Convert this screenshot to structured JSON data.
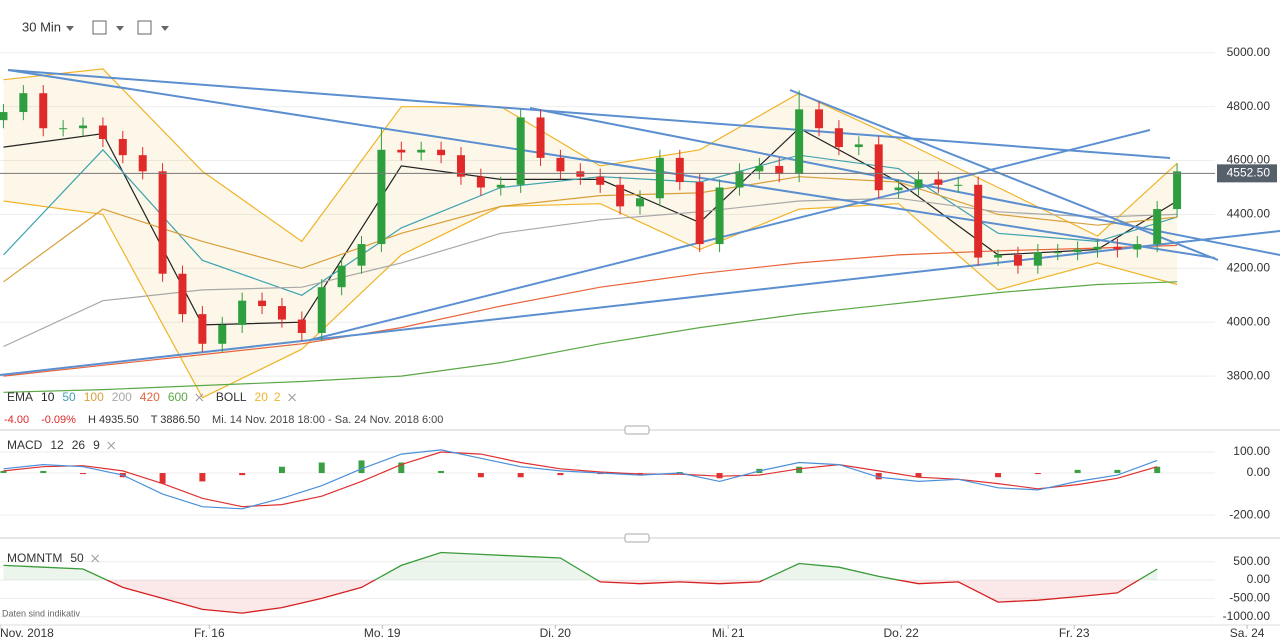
{
  "toolbar": {
    "interval": "30 Min"
  },
  "footer": "Daten sind indikativ",
  "chart_data": [
    {
      "type": "candlestick",
      "up_color": "#2f9e3f",
      "down_color": "#e02a2a",
      "x": [
        -0.19,
        -0.075,
        0.04,
        0.155,
        0.27,
        0.385,
        0.5,
        0.615,
        0.73,
        0.845,
        0.96,
        1.075,
        1.19,
        1.305,
        1.42,
        1.535,
        1.65,
        1.765,
        1.88,
        1.995,
        2.11,
        2.225,
        2.34,
        2.455,
        2.57,
        2.685,
        2.8,
        2.915,
        3.03,
        3.145,
        3.26,
        3.375,
        3.49,
        3.605,
        3.72,
        3.835,
        3.95,
        4.065,
        4.18,
        4.295,
        4.41,
        4.525,
        4.64,
        4.755,
        4.87,
        4.985,
        5.1,
        5.215,
        5.33,
        5.445,
        5.56,
        5.675,
        5.79,
        5.905,
        6.02,
        6.135,
        6.25,
        6.365,
        6.48,
        6.595
      ],
      "open": [
        4750,
        4780,
        4850,
        4720,
        4720,
        4730,
        4680,
        4620,
        4560,
        4180,
        4030,
        3920,
        3990,
        4080,
        4060,
        4010,
        3960,
        4130,
        4210,
        4290,
        4640,
        4630,
        4640,
        4620,
        4540,
        4500,
        4510,
        4760,
        4610,
        4560,
        4540,
        4510,
        4430,
        4460,
        4610,
        4520,
        4290,
        4500,
        4560,
        4580,
        4550,
        4790,
        4720,
        4650,
        4660,
        4490,
        4500,
        4530,
        4510,
        4510,
        4240,
        4250,
        4210,
        4260,
        4260,
        4270,
        4280,
        4270,
        4290,
        4420
      ],
      "high": [
        4810,
        4880,
        4880,
        4750,
        4760,
        4760,
        4710,
        4650,
        4590,
        4210,
        4060,
        4020,
        4110,
        4110,
        4090,
        4040,
        4160,
        4240,
        4320,
        4720,
        4670,
        4670,
        4670,
        4650,
        4570,
        4540,
        4790,
        4790,
        4640,
        4590,
        4570,
        4540,
        4490,
        4640,
        4640,
        4550,
        4530,
        4590,
        4610,
        4610,
        4860,
        4820,
        4750,
        4690,
        4690,
        4530,
        4560,
        4560,
        4540,
        4540,
        4270,
        4280,
        4290,
        4290,
        4300,
        4310,
        4310,
        4320,
        4450,
        4590
      ],
      "low": [
        4720,
        4750,
        4690,
        4690,
        4690,
        4650,
        4590,
        4530,
        4150,
        4000,
        3890,
        3890,
        3960,
        4030,
        3980,
        3930,
        3930,
        4100,
        4180,
        4260,
        4600,
        4600,
        4590,
        4510,
        4470,
        4470,
        4480,
        4580,
        4530,
        4510,
        4480,
        4400,
        4400,
        4430,
        4490,
        4260,
        4260,
        4470,
        4530,
        4520,
        4520,
        4690,
        4620,
        4620,
        4460,
        4460,
        4470,
        4480,
        4480,
        4210,
        4210,
        4180,
        4180,
        4230,
        4230,
        4240,
        4240,
        4240,
        4260,
        4390
      ],
      "close": [
        4780,
        4850,
        4720,
        4720,
        4730,
        4680,
        4620,
        4560,
        4180,
        4030,
        3920,
        3990,
        4080,
        4060,
        4010,
        3960,
        4130,
        4210,
        4290,
        4640,
        4630,
        4640,
        4620,
        4540,
        4500,
        4510,
        4760,
        4610,
        4560,
        4540,
        4510,
        4430,
        4460,
        4610,
        4520,
        4290,
        4500,
        4560,
        4580,
        4550,
        4790,
        4720,
        4650,
        4660,
        4490,
        4500,
        4530,
        4510,
        4510,
        4240,
        4250,
        4210,
        4260,
        4260,
        4270,
        4280,
        4270,
        4290,
        4420,
        4560
      ],
      "xlim": [
        -0.21,
        7.19
      ],
      "xticks": [
        {
          "value": -0.21,
          "label": "Nov. 2018"
        },
        {
          "value": 1,
          "label": "Fr. 16"
        },
        {
          "value": 2,
          "label": "Mo. 19"
        },
        {
          "value": 3,
          "label": "Di. 20"
        },
        {
          "value": 4,
          "label": "Mi. 21"
        },
        {
          "value": 5,
          "label": "Do. 22"
        },
        {
          "value": 6,
          "label": "Fr. 23"
        },
        {
          "value": 7,
          "label": "Sa. 24"
        }
      ],
      "ylim": [
        3600,
        5040
      ],
      "yticks": [
        {
          "value": 3800,
          "label": "3800.00"
        },
        {
          "value": 4000,
          "label": "4000.00"
        },
        {
          "value": 4200,
          "label": "4200.00"
        },
        {
          "value": 4400,
          "label": "4400.00"
        },
        {
          "value": 4600,
          "label": "4600.00"
        },
        {
          "value": 4800,
          "label": "4800.00"
        },
        {
          "value": 5000,
          "label": "5000.00"
        }
      ],
      "last_value": {
        "value": 4552.5,
        "label": "4552.50"
      },
      "overlay_label": "EMA",
      "overlay_x": [
        -0.19,
        0.385,
        0.96,
        1.535,
        2.11,
        2.685,
        3.26,
        3.835,
        4.41,
        4.985,
        5.56,
        6.135,
        6.595
      ],
      "overlays": [
        {
          "name": "10",
          "color": "#222222",
          "values": [
            4650,
            4700,
            3990,
            4000,
            4580,
            4530,
            4530,
            4370,
            4720,
            4520,
            4250,
            4270,
            4450
          ]
        },
        {
          "name": "50",
          "color": "#3fa3b0",
          "values": [
            4250,
            4640,
            4230,
            4100,
            4350,
            4500,
            4540,
            4520,
            4620,
            4570,
            4330,
            4300,
            4390
          ]
        },
        {
          "name": "100",
          "color": "#d8a03a",
          "values": [
            4150,
            4420,
            4300,
            4200,
            4330,
            4430,
            4470,
            4480,
            4540,
            4520,
            4400,
            4360,
            4390
          ]
        },
        {
          "name": "200",
          "color": "#a8a8a8",
          "values": [
            3910,
            4080,
            4120,
            4130,
            4220,
            4330,
            4380,
            4410,
            4450,
            4460,
            4410,
            4390,
            4400
          ]
        },
        {
          "name": "420",
          "color": "#e8643a",
          "values": [
            3800,
            3840,
            3880,
            3920,
            3980,
            4060,
            4130,
            4180,
            4220,
            4250,
            4265,
            4275,
            4285
          ]
        },
        {
          "name": "600",
          "color": "#5aa846",
          "values": [
            3740,
            3750,
            3765,
            3780,
            3800,
            3850,
            3920,
            3980,
            4030,
            4070,
            4110,
            4140,
            4150
          ]
        }
      ],
      "bollinger": {
        "label": "BOLL",
        "period": "20",
        "width": "2",
        "color": "#f0b429",
        "upper": [
          4900,
          4940,
          4560,
          4300,
          4800,
          4800,
          4580,
          4640,
          4850,
          4680,
          4500,
          4320,
          4590
        ],
        "lower": [
          4450,
          4400,
          3720,
          3900,
          4250,
          4430,
          4440,
          4270,
          4420,
          4440,
          4120,
          4220,
          4140
        ]
      },
      "info": {
        "change": "-4.00",
        "change_pct": "-0.09%",
        "high": "H 4935.50",
        "low": "T 3886.50",
        "range": "Mi. 14 Nov. 2018 18:00 - Sa. 24 Nov. 2018 6:00"
      }
    },
    {
      "type": "combo",
      "label": "MACD",
      "params": [
        "12",
        "26",
        "9"
      ],
      "x": [
        -0.19,
        0.04,
        0.27,
        0.5,
        0.73,
        0.96,
        1.19,
        1.42,
        1.65,
        1.88,
        2.11,
        2.34,
        2.57,
        2.8,
        3.03,
        3.26,
        3.49,
        3.72,
        3.95,
        4.18,
        4.41,
        4.64,
        4.87,
        5.1,
        5.33,
        5.56,
        5.79,
        6.02,
        6.25,
        6.48
      ],
      "histogram": {
        "up_color": "#3aa043",
        "down_color": "#e03030",
        "values": [
          10,
          10,
          -5,
          -20,
          -50,
          -40,
          -10,
          30,
          50,
          60,
          50,
          10,
          -20,
          -20,
          -10,
          -5,
          -5,
          5,
          -25,
          20,
          30,
          0,
          -30,
          -20,
          0,
          -20,
          -5,
          15,
          15,
          30
        ]
      },
      "macd": {
        "color": "#4a90d9",
        "values": [
          20,
          40,
          30,
          -10,
          -100,
          -160,
          -170,
          -120,
          -60,
          20,
          90,
          110,
          70,
          30,
          10,
          0,
          -10,
          0,
          -40,
          10,
          50,
          40,
          -20,
          -40,
          -30,
          -70,
          -80,
          -40,
          -10,
          60
        ]
      },
      "signal": {
        "color": "#e03030",
        "values": [
          10,
          30,
          35,
          10,
          -50,
          -120,
          -160,
          -150,
          -110,
          -40,
          40,
          100,
          90,
          50,
          20,
          5,
          -5,
          -5,
          -15,
          -10,
          20,
          40,
          10,
          -20,
          -30,
          -50,
          -75,
          -55,
          -25,
          30
        ]
      },
      "ylim": [
        -285,
        195
      ],
      "yticks": [
        {
          "value": -200,
          "label": "-200.00"
        },
        {
          "value": 0,
          "label": "0.00"
        },
        {
          "value": 100,
          "label": "100.00"
        }
      ]
    },
    {
      "type": "area",
      "label": "MOMNTM",
      "params": [
        "50"
      ],
      "x": [
        -0.19,
        0.04,
        0.27,
        0.5,
        0.73,
        0.96,
        1.19,
        1.42,
        1.65,
        1.88,
        2.11,
        2.34,
        2.57,
        2.8,
        3.03,
        3.26,
        3.49,
        3.72,
        3.95,
        4.18,
        4.41,
        4.64,
        4.87,
        5.1,
        5.33,
        5.56,
        5.79,
        6.02,
        6.25,
        6.48
      ],
      "values": [
        400,
        350,
        300,
        -200,
        -500,
        -800,
        -900,
        -750,
        -500,
        -200,
        400,
        750,
        700,
        650,
        600,
        -50,
        -100,
        -50,
        -100,
        -50,
        450,
        350,
        100,
        -100,
        -50,
        -600,
        -550,
        -450,
        -350,
        300
      ],
      "color_above": "#3a9a3a",
      "color_below": "#d42020",
      "ylim": [
        -1225,
        955
      ],
      "yticks": [
        {
          "value": -1000,
          "label": "-1000.00"
        },
        {
          "value": -500,
          "label": "-500.00"
        },
        {
          "value": 0,
          "label": "0.00"
        },
        {
          "value": 500,
          "label": "500.00"
        }
      ]
    }
  ]
}
